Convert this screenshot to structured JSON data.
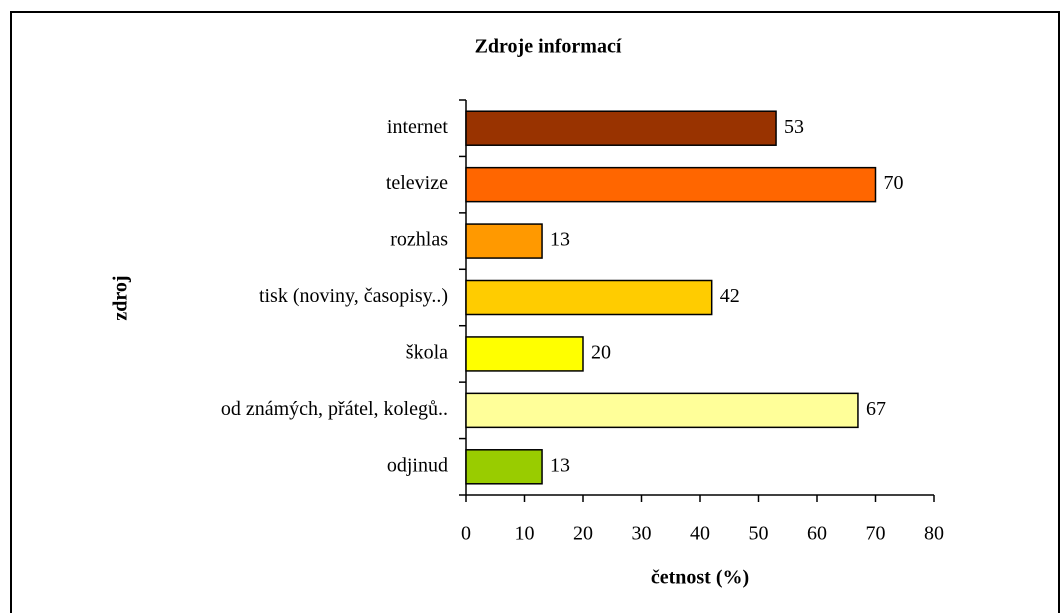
{
  "chart_data": {
    "type": "barh",
    "title": "Zdroje informací",
    "categories": [
      "internet",
      "televize",
      "rozhlas",
      "tisk (noviny, časopisy..)",
      "škola",
      "od známých, přátel, kolegů..",
      "odjinud"
    ],
    "values": [
      53,
      70,
      13,
      42,
      20,
      67,
      13
    ],
    "colors": [
      "#993300",
      "#ff6600",
      "#ff9900",
      "#ffcc00",
      "#ffff00",
      "#ffff99",
      "#99cc00"
    ],
    "xlabel": "četnost (%)",
    "ylabel": "zdroj",
    "xlim": [
      0,
      80
    ],
    "xticks": [
      0,
      10,
      20,
      30,
      40,
      50,
      60,
      70,
      80
    ]
  }
}
